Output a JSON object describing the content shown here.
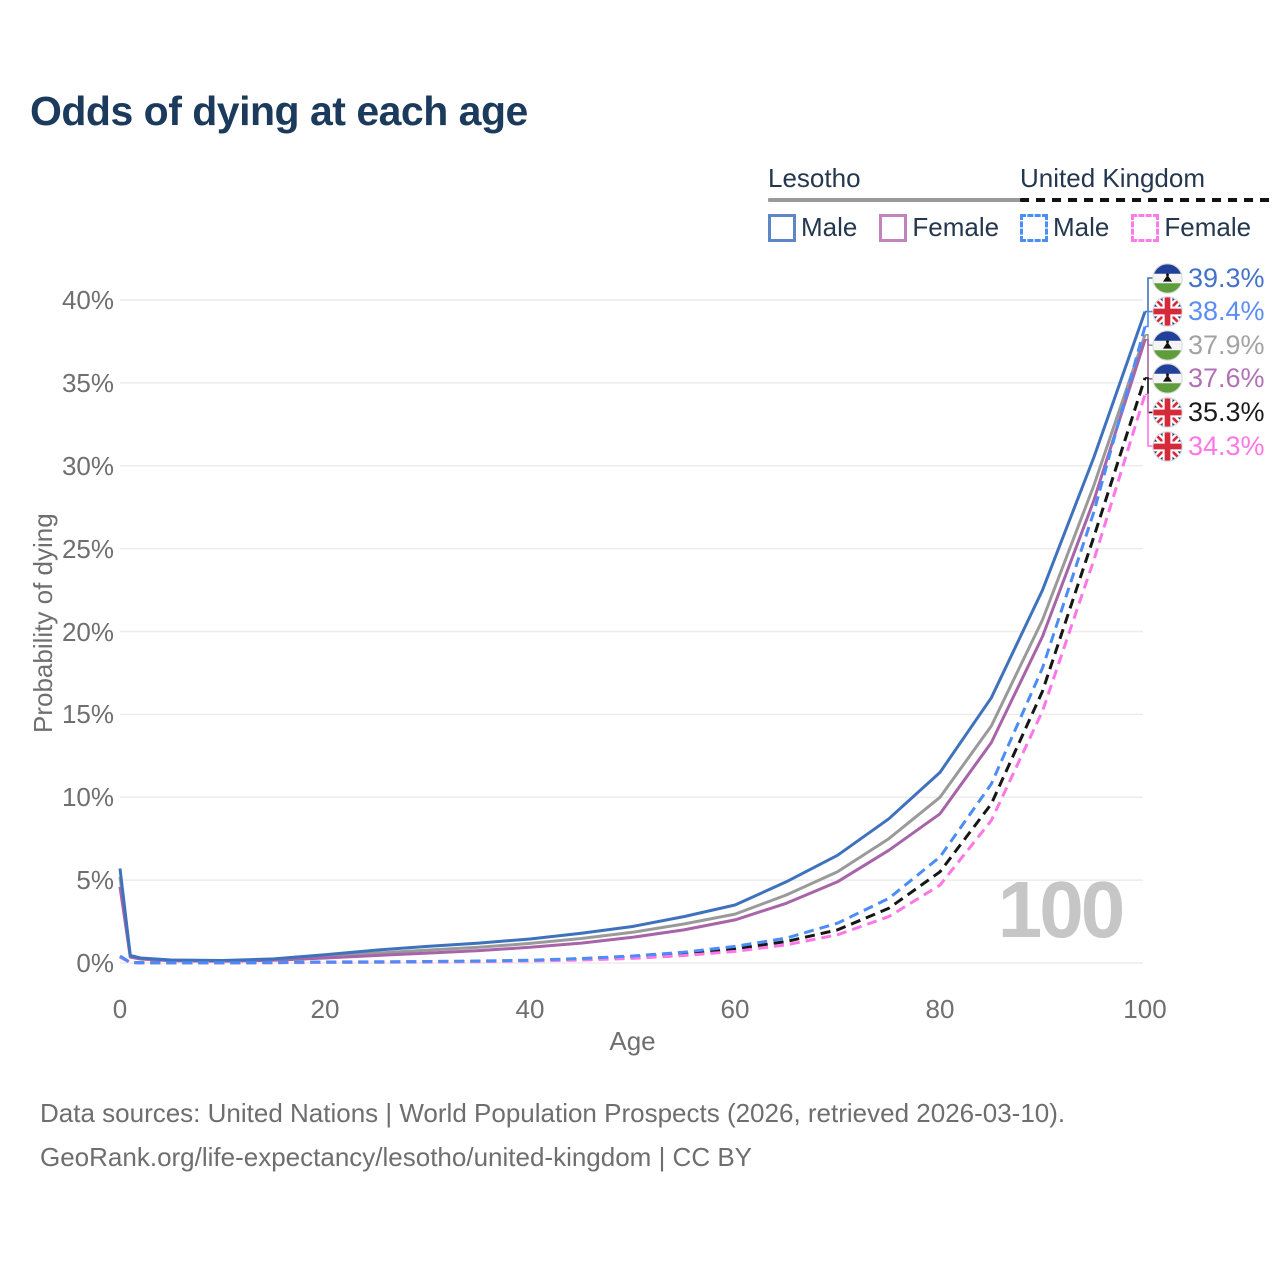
{
  "title": "Odds of dying at each age",
  "watermark": "100",
  "colors": {
    "title": "#1b3a5c",
    "grid": "#ececec",
    "axis_text": "#6f6f6f",
    "watermark": "#c6c6c6",
    "footer_text": "#6e6e6e",
    "lesotho_male": "#3f72bd",
    "lesotho_female": "#a864a8",
    "lesotho_both": "#9a9a9a",
    "uk_male": "#4b8cf7",
    "uk_female": "#ff77e6",
    "uk_both": "#161616"
  },
  "legend": {
    "groups": [
      {
        "label": "Lesotho",
        "underline_style": "solid",
        "underline_color": "#9a9a9a",
        "items": [
          {
            "label": "Male",
            "color": "#5c86c5",
            "line_style": "solid"
          },
          {
            "label": "Female",
            "color": "#c183bb",
            "line_style": "solid"
          }
        ]
      },
      {
        "label": "United Kingdom",
        "underline_style": "dashed",
        "underline_color": "#111111",
        "items": [
          {
            "label": "Male",
            "color": "#4d8ef5",
            "line_style": "dashed"
          },
          {
            "label": "Female",
            "color": "#fb7ce8",
            "line_style": "dashed"
          }
        ]
      }
    ]
  },
  "end_labels": [
    {
      "series_key": "lesotho-male",
      "flag": "lesotho-flag-icon",
      "value": "39.3%",
      "color": "#4472c8"
    },
    {
      "series_key": "uk-male",
      "flag": "uk-flag-icon",
      "value": "38.4%",
      "color": "#5b8df2"
    },
    {
      "series_key": "lesotho-both",
      "flag": "lesotho-flag-icon",
      "value": "37.9%",
      "color": "#a3a3a3"
    },
    {
      "series_key": "lesotho-female",
      "flag": "lesotho-flag-icon",
      "value": "37.6%",
      "color": "#b271b4"
    },
    {
      "series_key": "uk-both",
      "flag": "uk-flag-icon",
      "value": "35.3%",
      "color": "#1a1a1a"
    },
    {
      "series_key": "uk-female",
      "flag": "uk-flag-icon",
      "value": "34.3%",
      "color": "#ff77e6"
    }
  ],
  "footer": {
    "line1": "Data sources: United Nations | World Population Prospects (2026, retrieved 2026-03-10).",
    "line2": "GeoRank.org/life-expectancy/lesotho/united-kingdom | CC BY"
  },
  "chart_data": {
    "type": "line",
    "title": "Odds of dying at each age",
    "xlabel": "Age",
    "ylabel": "Probability of dying",
    "xlim": [
      0,
      100
    ],
    "ylim_pct": [
      0,
      41
    ],
    "x_ticks": [
      0,
      20,
      40,
      60,
      80,
      100
    ],
    "y_ticks_pct": [
      0,
      5,
      10,
      15,
      20,
      25,
      30,
      35,
      40
    ],
    "grid": "horizontal",
    "legend_position": "top-right",
    "x": [
      0,
      1,
      2,
      5,
      10,
      15,
      20,
      25,
      30,
      35,
      40,
      45,
      50,
      55,
      60,
      65,
      70,
      75,
      80,
      85,
      90,
      95,
      100
    ],
    "series": [
      {
        "key": "lesotho-both",
        "name": "Lesotho — Both sexes",
        "country": "Lesotho",
        "sex": "Both",
        "color": "#9a9a9a",
        "line_style": "solid",
        "end_label": "37.9%",
        "values_pct": [
          5.2,
          0.4,
          0.27,
          0.16,
          0.13,
          0.2,
          0.4,
          0.6,
          0.78,
          0.95,
          1.18,
          1.48,
          1.85,
          2.35,
          2.95,
          4.1,
          5.5,
          7.5,
          10.0,
          14.3,
          20.7,
          28.8,
          37.9
        ]
      },
      {
        "key": "lesotho-female",
        "name": "Lesotho — Female",
        "country": "Lesotho",
        "sex": "Female",
        "color": "#a864a8",
        "line_style": "solid",
        "end_label": "37.6%",
        "values_pct": [
          4.6,
          0.35,
          0.24,
          0.14,
          0.11,
          0.16,
          0.3,
          0.45,
          0.6,
          0.75,
          0.95,
          1.2,
          1.55,
          2.0,
          2.6,
          3.6,
          4.9,
          6.8,
          9.0,
          13.3,
          19.7,
          27.9,
          37.6
        ]
      },
      {
        "key": "lesotho-male",
        "name": "Lesotho — Male",
        "country": "Lesotho",
        "sex": "Male",
        "color": "#3f72bd",
        "line_style": "solid",
        "end_label": "39.3%",
        "values_pct": [
          5.7,
          0.45,
          0.3,
          0.18,
          0.15,
          0.25,
          0.5,
          0.78,
          1.0,
          1.2,
          1.45,
          1.8,
          2.2,
          2.8,
          3.5,
          4.9,
          6.5,
          8.7,
          11.5,
          16.0,
          22.5,
          30.5,
          39.3
        ]
      },
      {
        "key": "uk-both",
        "name": "United Kingdom — Both sexes",
        "country": "United Kingdom",
        "sex": "Both",
        "color": "#161616",
        "line_style": "dashed",
        "end_label": "35.3%",
        "values_pct": [
          0.38,
          0.028,
          0.018,
          0.009,
          0.009,
          0.025,
          0.045,
          0.055,
          0.07,
          0.1,
          0.14,
          0.22,
          0.35,
          0.55,
          0.85,
          1.3,
          2.0,
          3.3,
          5.5,
          9.6,
          16.4,
          25.7,
          35.3
        ]
      },
      {
        "key": "uk-female",
        "name": "United Kingdom — Female",
        "country": "United Kingdom",
        "sex": "Female",
        "color": "#ff77e6",
        "line_style": "dashed",
        "end_label": "34.3%",
        "values_pct": [
          0.35,
          0.025,
          0.015,
          0.008,
          0.008,
          0.02,
          0.03,
          0.04,
          0.055,
          0.08,
          0.12,
          0.18,
          0.28,
          0.45,
          0.7,
          1.1,
          1.7,
          2.8,
          4.7,
          8.6,
          15.2,
          24.3,
          34.3
        ]
      },
      {
        "key": "uk-male",
        "name": "United Kingdom — Male",
        "country": "United Kingdom",
        "sex": "Male",
        "color": "#4b8cf7",
        "line_style": "dashed",
        "end_label": "38.4%",
        "values_pct": [
          0.42,
          0.03,
          0.02,
          0.01,
          0.01,
          0.03,
          0.06,
          0.07,
          0.09,
          0.12,
          0.17,
          0.27,
          0.42,
          0.65,
          1.0,
          1.5,
          2.4,
          3.9,
          6.4,
          10.8,
          17.8,
          27.2,
          38.4
        ]
      }
    ]
  }
}
